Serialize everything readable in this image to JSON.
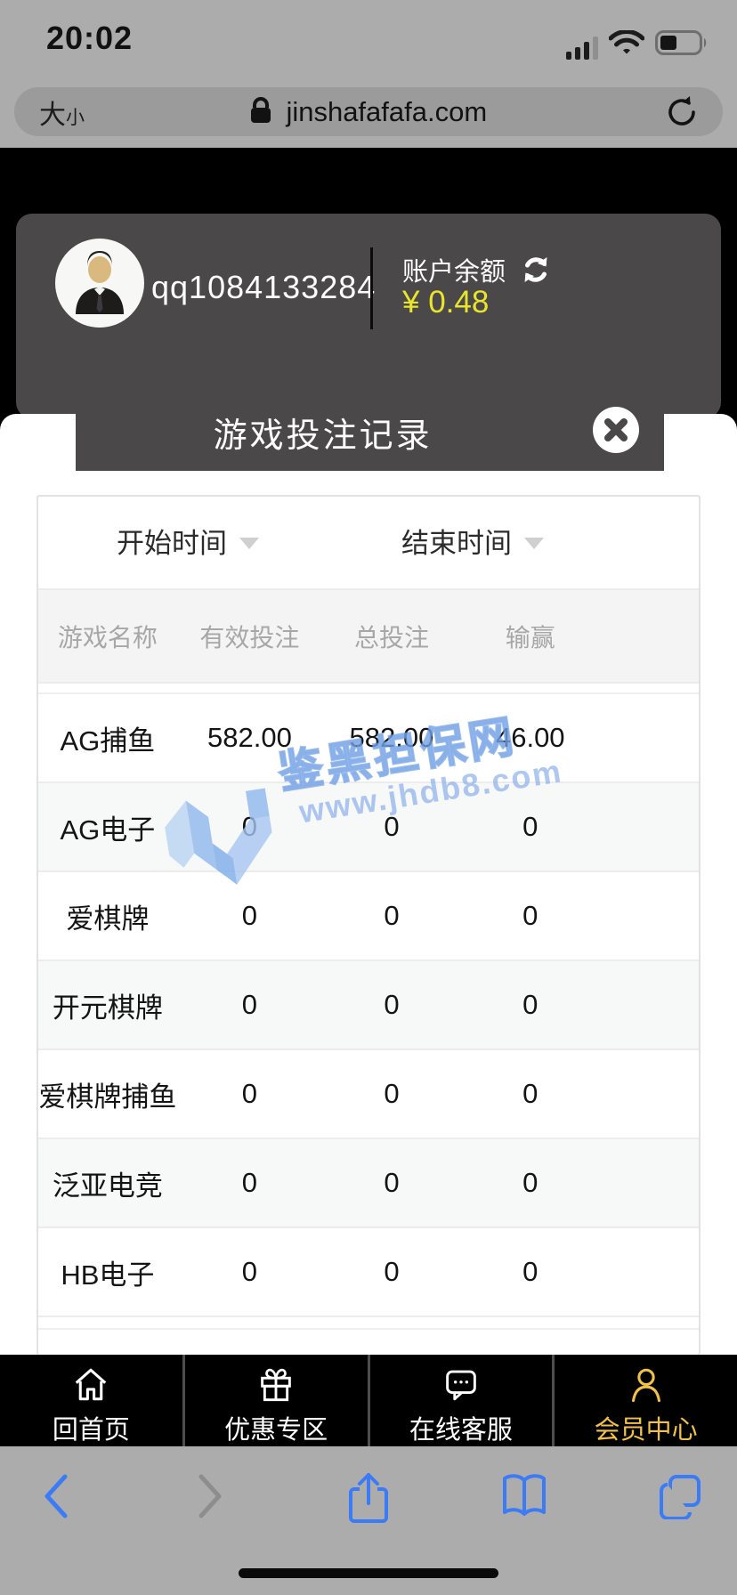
{
  "status_bar": {
    "time": "20:02"
  },
  "browser": {
    "font_size_control": {
      "big": "大",
      "small": "小"
    },
    "domain": "jinshafafafa.com"
  },
  "account": {
    "username": "qq1084133284",
    "balance_label": "账户余额",
    "balance_value": "¥ 0.48"
  },
  "modal": {
    "title": "游戏投注记录"
  },
  "filters": {
    "start_time": "开始时间",
    "end_time": "结束时间"
  },
  "table": {
    "headers": [
      "游戏名称",
      "有效投注",
      "总投注",
      "输赢"
    ],
    "rows": [
      [
        "AG捕鱼",
        "582.00",
        "582.00",
        "46.00"
      ],
      [
        "AG电子",
        "0",
        "0",
        "0"
      ],
      [
        "爱棋牌",
        "0",
        "0",
        "0"
      ],
      [
        "开元棋牌",
        "0",
        "0",
        "0"
      ],
      [
        "爱棋牌捕鱼",
        "0",
        "0",
        "0"
      ],
      [
        "泛亚电竞",
        "0",
        "0",
        "0"
      ],
      [
        "HB电子",
        "0",
        "0",
        "0"
      ]
    ]
  },
  "watermark": {
    "title": "鉴黑担保网",
    "url": "www.jhdb8.com"
  },
  "bottom_nav": {
    "items": [
      {
        "label": "回首页",
        "icon": "home-icon",
        "active": false
      },
      {
        "label": "优惠专区",
        "icon": "gift-icon",
        "active": false
      },
      {
        "label": "在线客服",
        "icon": "chat-icon",
        "active": false
      },
      {
        "label": "会员中心",
        "icon": "person-icon",
        "active": true
      }
    ]
  },
  "colors": {
    "header_dark": "#4a4848",
    "balance_yellow": "#e8e52c",
    "nav_active_gold": "#f0c14b",
    "watermark_blue": "#6899e2",
    "safari_blue": "#3b7bf5",
    "chrome_gray": "#adacac"
  }
}
